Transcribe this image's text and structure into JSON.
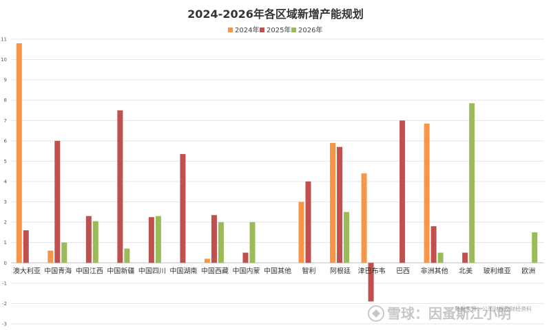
{
  "chart_data": {
    "type": "bar",
    "title": "2024-2026年各区域新增产能规划",
    "categories": [
      "澳大利亚",
      "中国青海",
      "中国江西",
      "中国新疆",
      "中国四川",
      "中国湖南",
      "中国西藏",
      "中国内蒙",
      "中国其他",
      "智利",
      "阿根廷",
      "津巴布韦",
      "巴西",
      "非洲其他",
      "北美",
      "玻利维亚",
      "欧洲"
    ],
    "series": [
      {
        "name": "2024年",
        "color": "#F79646",
        "values": [
          10.8,
          0.6,
          0,
          0,
          0,
          0,
          0.2,
          0,
          0,
          3.0,
          5.9,
          4.4,
          0,
          6.85,
          0,
          0,
          0
        ]
      },
      {
        "name": "2025年",
        "color": "#C0504D",
        "values": [
          1.6,
          6.0,
          2.3,
          7.5,
          2.25,
          5.35,
          2.35,
          0.5,
          0,
          4.0,
          5.7,
          -1.9,
          7.0,
          1.8,
          0.5,
          0,
          0
        ]
      },
      {
        "name": "2026年",
        "color": "#9BBB59",
        "values": [
          0,
          1.0,
          2.05,
          0.7,
          2.3,
          0,
          2.0,
          2.0,
          0,
          0,
          2.5,
          0,
          0,
          0.5,
          7.85,
          0,
          1.5
        ]
      }
    ],
    "ylim": [
      -3,
      11
    ],
    "yticks": [
      -3,
      -2,
      -1,
      0,
      1,
      2,
      3,
      4,
      5,
      6,
      7,
      8,
      9,
      10,
      11
    ],
    "grid": true,
    "legend_position": "top-center"
  },
  "watermark": {
    "brand": "雪球：因蚤斯江小明",
    "source": "数据来源：公司财报及财经资料"
  }
}
